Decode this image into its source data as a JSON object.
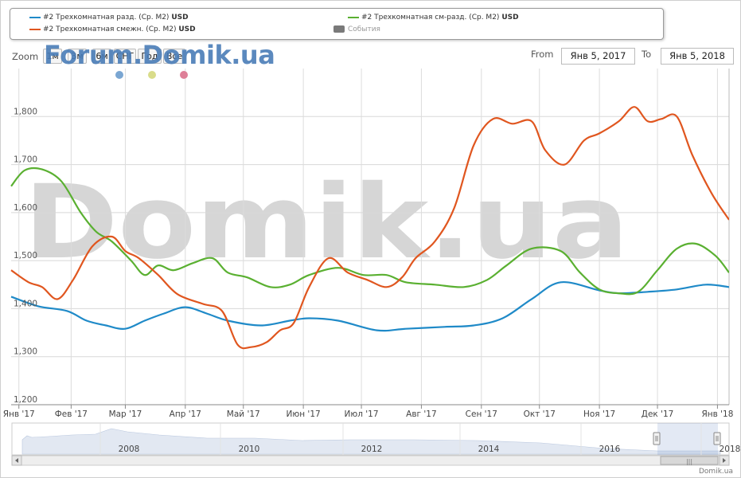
{
  "legend": {
    "items": [
      {
        "label": "#2 Трехкомнатная разд. (Ср. М2)",
        "unit": "USD",
        "color": "#1f8ac8"
      },
      {
        "label": "#2 Трехкомнатная см-разд. (Ср. М2)",
        "unit": "USD",
        "color": "#5ab031"
      },
      {
        "label": "#2 Трехкомнатная смежн. (Ср. М2)",
        "unit": "USD",
        "color": "#e0561f"
      },
      {
        "label": "События",
        "unit": "",
        "color": "#7a7a7a"
      }
    ]
  },
  "zoom": {
    "label": "Zoom",
    "buttons": [
      "1м",
      "3м",
      "6м",
      "СНГ",
      "Год",
      "Все"
    ]
  },
  "watermark_top": "Forum.Domik.ua",
  "watermark_big": "Domik.ua",
  "range": {
    "from_label": "From",
    "from": "Янв 5, 2017",
    "to_label": "To",
    "to": "Янв 5, 2018"
  },
  "event_markers": [
    {
      "x": "Мар '17",
      "color": "#7aa6d2"
    },
    {
      "x": "Мар '17b",
      "color": "#d9dc8a"
    },
    {
      "x": "Апр '17",
      "color": "#de7f98"
    }
  ],
  "credit": "Domik.ua",
  "chart_data": {
    "type": "line",
    "y_ticks": [
      "1,200",
      "1,300",
      "1,400",
      "1,500",
      "1,600",
      "1,700",
      "1,800"
    ],
    "ylim": [
      1200,
      1900
    ],
    "x_ticks": [
      "Янв '17",
      "Фев '17",
      "Мар '17",
      "Апр '17",
      "Май '17",
      "Июн '17",
      "Июл '17",
      "Авг '17",
      "Сен '17",
      "Окт '17",
      "Ноя '17",
      "Дек '17",
      "Янв '18"
    ],
    "x_days": [
      0,
      27,
      55,
      86,
      116,
      147,
      177,
      208,
      239,
      269,
      300,
      330,
      361
    ],
    "xlim": [
      -4,
      367
    ],
    "series": [
      {
        "name": "#2 Трехкомнатная разд. (Ср. М2)",
        "color": "#1f8ac8",
        "days": [
          -4,
          10,
          25,
          35,
          45,
          55,
          65,
          75,
          86,
          97,
          108,
          125,
          140,
          150,
          165,
          185,
          200,
          220,
          235,
          250,
          265,
          280,
          300,
          310,
          325,
          340,
          355,
          367
        ],
        "values": [
          1425,
          1405,
          1395,
          1375,
          1365,
          1358,
          1375,
          1390,
          1403,
          1390,
          1375,
          1365,
          1375,
          1380,
          1375,
          1355,
          1358,
          1362,
          1365,
          1380,
          1420,
          1455,
          1438,
          1432,
          1435,
          1440,
          1450,
          1445
        ]
      },
      {
        "name": "#2 Трехкомнатная см-разд. (Ср. М2)",
        "color": "#5ab031",
        "days": [
          -4,
          3,
          12,
          22,
          32,
          40,
          48,
          58,
          65,
          72,
          80,
          90,
          100,
          108,
          118,
          130,
          140,
          150,
          165,
          178,
          190,
          200,
          215,
          230,
          242,
          252,
          265,
          280,
          290,
          300,
          310,
          320,
          330,
          340,
          350,
          360,
          367
        ],
        "values": [
          1655,
          1688,
          1690,
          1665,
          1600,
          1560,
          1540,
          1500,
          1470,
          1490,
          1480,
          1495,
          1505,
          1475,
          1465,
          1445,
          1450,
          1470,
          1485,
          1470,
          1470,
          1455,
          1450,
          1445,
          1460,
          1490,
          1525,
          1520,
          1475,
          1440,
          1432,
          1435,
          1480,
          1525,
          1535,
          1510,
          1475
        ]
      },
      {
        "name": "#2 Трехкомнатная смежн. (Ср. М2)",
        "color": "#e0561f",
        "days": [
          -4,
          5,
          12,
          20,
          28,
          38,
          48,
          55,
          62,
          72,
          82,
          95,
          105,
          113,
          120,
          128,
          135,
          142,
          150,
          160,
          170,
          180,
          190,
          198,
          205,
          215,
          225,
          235,
          245,
          255,
          265,
          272,
          282,
          292,
          300,
          310,
          318,
          325,
          332,
          340,
          348,
          358,
          367
        ],
        "values": [
          1480,
          1455,
          1445,
          1420,
          1460,
          1530,
          1550,
          1520,
          1505,
          1470,
          1430,
          1410,
          1395,
          1325,
          1320,
          1330,
          1355,
          1370,
          1445,
          1505,
          1475,
          1460,
          1445,
          1465,
          1505,
          1540,
          1610,
          1740,
          1795,
          1785,
          1790,
          1730,
          1700,
          1750,
          1765,
          1790,
          1820,
          1790,
          1795,
          1800,
          1720,
          1640,
          1585
        ]
      }
    ],
    "navigator": {
      "x_ticks": [
        "2008",
        "2010",
        "2012",
        "2014",
        "2016",
        "2018"
      ]
    }
  }
}
